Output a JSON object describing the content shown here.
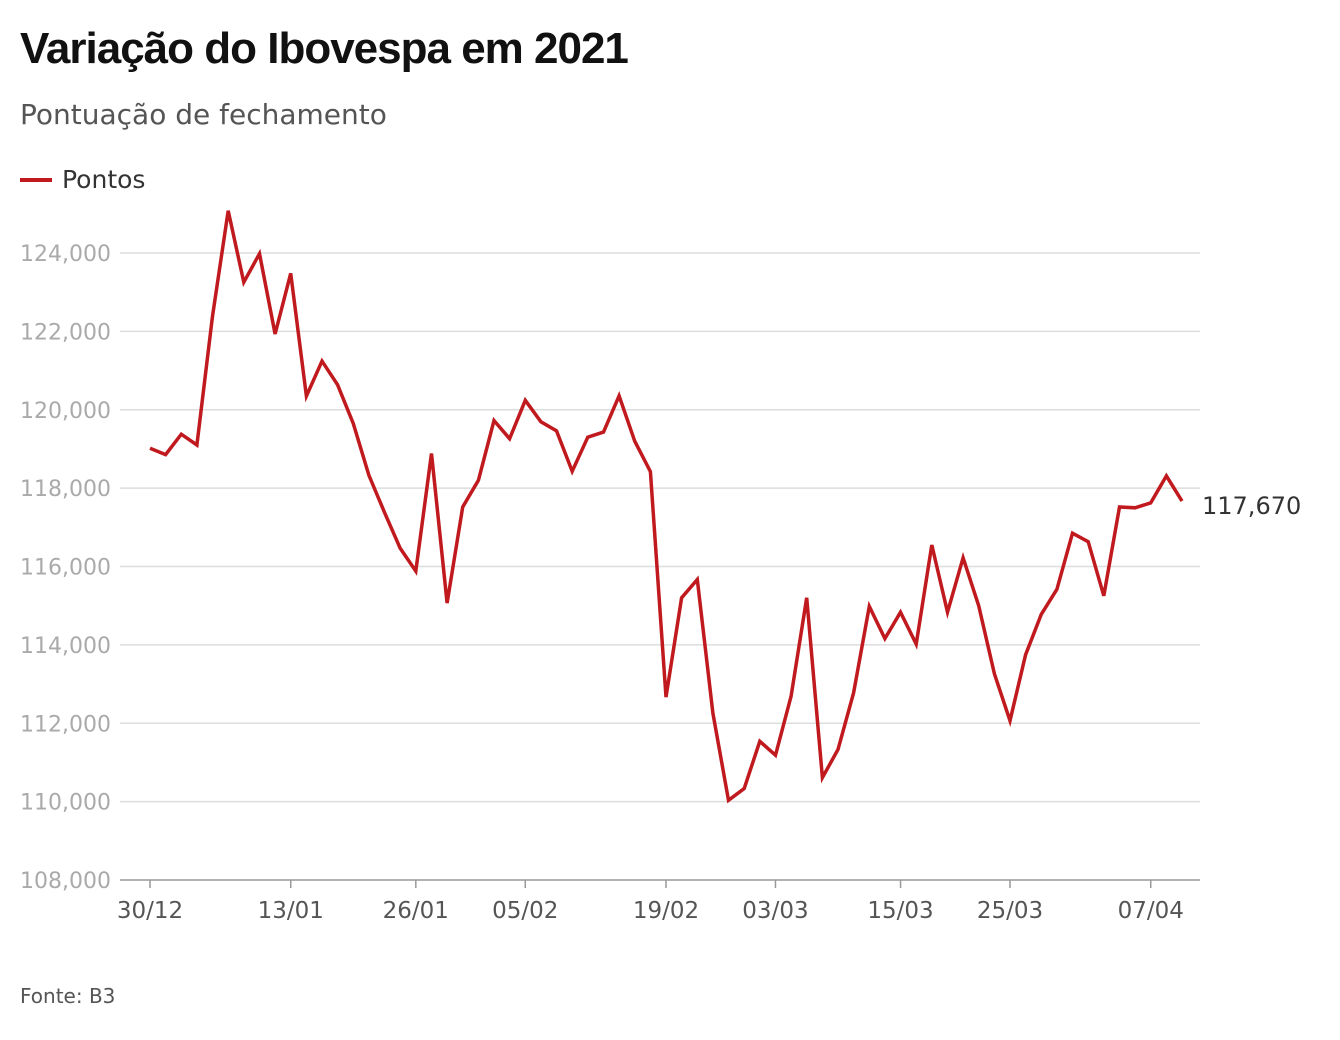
{
  "header": {
    "title": "Variação do Ibovespa em 2021",
    "subtitle": "Pontuação de fechamento"
  },
  "legend": {
    "label": "Pontos",
    "color": "#c0191e"
  },
  "source": "Fonte: B3",
  "chart_data": {
    "type": "line",
    "title": "Variação do Ibovespa em 2021",
    "subtitle": "Pontuação de fechamento",
    "xlabel": "",
    "ylabel": "",
    "ylim": [
      108000,
      125500
    ],
    "yticks": [
      108000,
      110000,
      112000,
      114000,
      116000,
      118000,
      120000,
      122000,
      124000
    ],
    "ytick_labels": [
      "108,000",
      "110,000",
      "112,000",
      "114,000",
      "116,000",
      "118,000",
      "120,000",
      "122,000",
      "124,000"
    ],
    "xtick_labels": [
      "30/12",
      "13/01",
      "26/01",
      "05/02",
      "19/02",
      "03/03",
      "15/03",
      "25/03",
      "07/04"
    ],
    "xtick_index": [
      0,
      9,
      17,
      24,
      33,
      40,
      48,
      55,
      64
    ],
    "grid": true,
    "legend_position": "top-left",
    "end_label": "117,670",
    "series": [
      {
        "name": "Pontos",
        "color": "#c0191e",
        "values": [
          119017,
          118855,
          119376,
          119101,
          122386,
          125077,
          123255,
          123981,
          121933,
          123480,
          120348,
          121241,
          120636,
          119646,
          118328,
          117380,
          116464,
          115882,
          118883,
          115067,
          117518,
          118200,
          119725,
          119261,
          120241,
          119692,
          119464,
          118430,
          119300,
          119429,
          120356,
          119199,
          118421,
          112668,
          115202,
          115668,
          112256,
          110035,
          110335,
          111540,
          111184,
          112690,
          115202,
          110612,
          111331,
          112776,
          114983,
          114160,
          114835,
          114019,
          116549,
          114835,
          116222,
          115000,
          113262,
          112065,
          113750,
          114781,
          115418,
          116849,
          116634,
          115253,
          117518,
          117499,
          117624,
          118313,
          117670
        ]
      }
    ]
  }
}
